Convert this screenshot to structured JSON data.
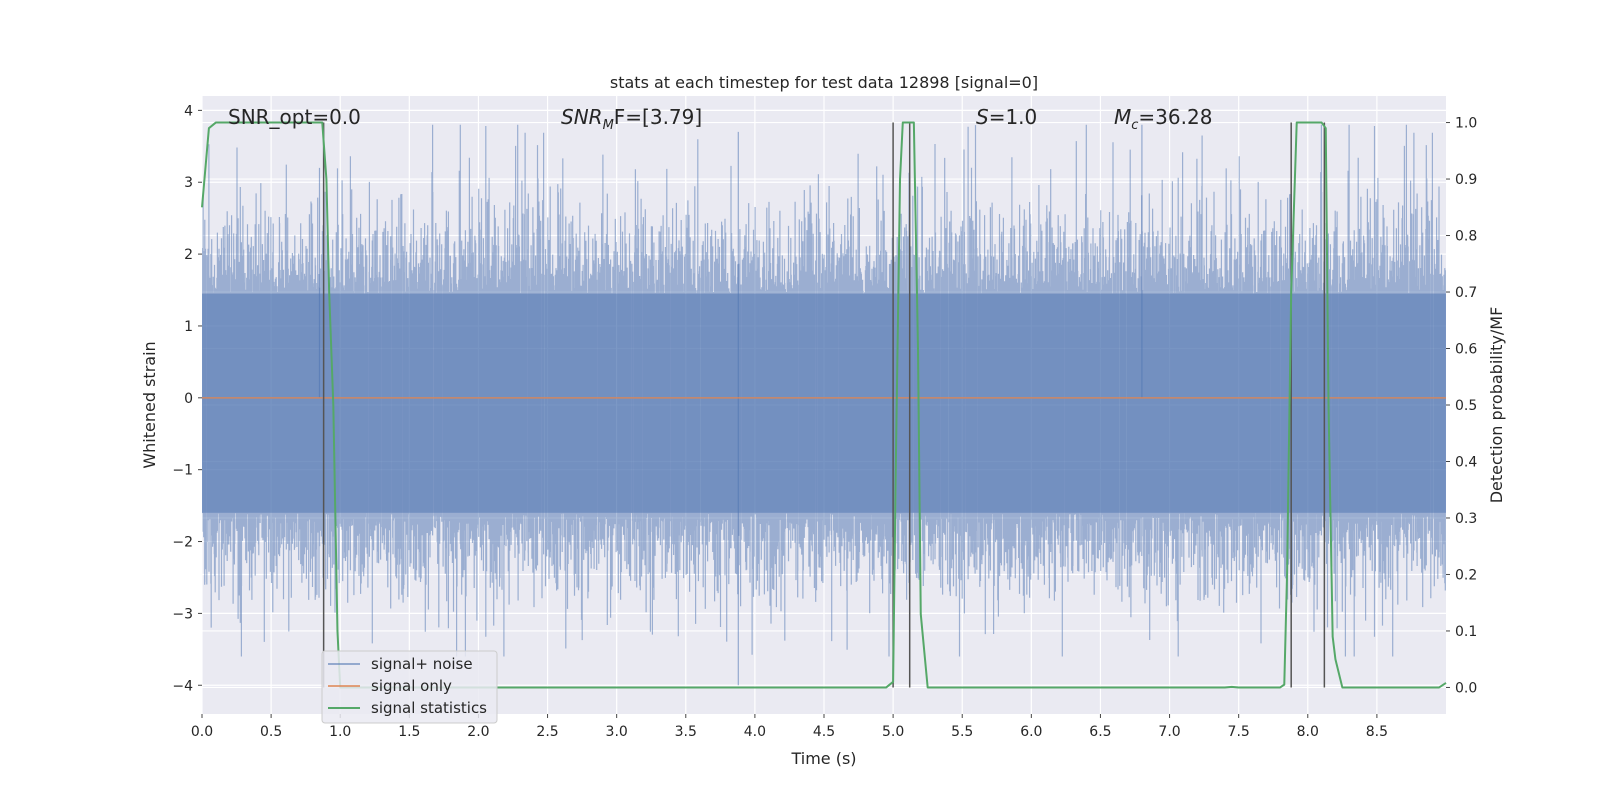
{
  "chart_data": {
    "type": "line",
    "title": "stats at each timestep for test data 12898 [signal=0]",
    "xlabel": "Time (s)",
    "ylabel": "Whitened strain",
    "y2label": "Detection probability/MF",
    "xlim": [
      0,
      9
    ],
    "ylim": [
      -4.4,
      4.2
    ],
    "y2lim": [
      -0.047,
      1.047
    ],
    "x_ticks": [
      "0.0",
      "0.5",
      "1.0",
      "1.5",
      "2.0",
      "2.5",
      "3.0",
      "3.5",
      "4.0",
      "4.5",
      "5.0",
      "5.5",
      "6.0",
      "6.5",
      "7.0",
      "7.5",
      "8.0",
      "8.5"
    ],
    "x_tick_values": [
      0,
      0.5,
      1,
      1.5,
      2,
      2.5,
      3,
      3.5,
      4,
      4.5,
      5,
      5.5,
      6,
      6.5,
      7,
      7.5,
      8,
      8.5
    ],
    "y_ticks": [
      "−4",
      "−3",
      "−2",
      "−1",
      "0",
      "1",
      "2",
      "3",
      "4"
    ],
    "y_tick_values": [
      -4,
      -3,
      -2,
      -1,
      0,
      1,
      2,
      3,
      4
    ],
    "y2_ticks": [
      "0.0",
      "0.1",
      "0.2",
      "0.3",
      "0.4",
      "0.5",
      "0.6",
      "0.7",
      "0.8",
      "0.9",
      "1.0"
    ],
    "y2_tick_values": [
      0,
      0.1,
      0.2,
      0.3,
      0.4,
      0.5,
      0.6,
      0.7,
      0.8,
      0.9,
      1.0
    ],
    "grid": true,
    "legend_placement": "lower-left",
    "annotations": {
      "snr_opt": "SNR_opt=0.0",
      "snr_mf_base": "SNR",
      "snr_mf_sub": "M",
      "snr_mf_rest": "F=[3.79]",
      "s_var": "S",
      "s_rest": "=1.0",
      "mc_base": "M",
      "mc_sub": "c",
      "mc_rest": "=36.28"
    },
    "colors": {
      "noise": "#4c72b0",
      "signal": "#dd8452",
      "stats": "#55a868",
      "vlines": "#555555",
      "background": "#eaeaf2"
    },
    "series": [
      {
        "name": "signal+ noise",
        "kind": "noise-strain",
        "axis": "left",
        "core_range": [
          -1.6,
          1.45
        ],
        "peak_range": [
          -3.6,
          3.8
        ]
      },
      {
        "name": "signal only",
        "axis": "left",
        "x": [
          0,
          9
        ],
        "y": [
          0,
          0
        ]
      },
      {
        "name": "signal statistics",
        "axis": "right",
        "x": [
          0.0,
          0.05,
          0.1,
          0.15,
          0.2,
          0.3,
          0.5,
          0.7,
          0.85,
          0.87,
          0.9,
          0.92,
          0.95,
          0.98,
          1.0,
          1.1,
          1.5,
          2.0,
          3.0,
          4.0,
          4.9,
          4.95,
          5.0,
          5.02,
          5.05,
          5.07,
          5.1,
          5.15,
          5.18,
          5.2,
          5.25,
          5.5,
          6.0,
          7.0,
          7.4,
          7.45,
          7.5,
          7.8,
          7.83,
          7.85,
          7.88,
          7.92,
          7.95,
          8.05,
          8.1,
          8.13,
          8.15,
          8.18,
          8.2,
          8.25,
          8.5,
          8.95,
          9.0
        ],
        "y": [
          0.85,
          0.99,
          1.0,
          1.0,
          1.0,
          1.0,
          1.0,
          1.0,
          1.0,
          1.0,
          0.9,
          0.7,
          0.5,
          0.1,
          0.0,
          0.0,
          0.0,
          0.0,
          0.0,
          0.0,
          0.0,
          0.0,
          0.01,
          0.4,
          0.9,
          1.0,
          1.0,
          1.0,
          0.6,
          0.13,
          0.0,
          0.0,
          0.0,
          0.0,
          0.0,
          0.001,
          0.0,
          0.0,
          0.005,
          0.2,
          0.7,
          1.0,
          1.0,
          1.0,
          1.0,
          0.99,
          0.5,
          0.09,
          0.05,
          0.0,
          0.0,
          0.0,
          0.008
        ]
      }
    ],
    "vlines": [
      0.88,
      5.0,
      5.12,
      7.88,
      8.12
    ]
  }
}
